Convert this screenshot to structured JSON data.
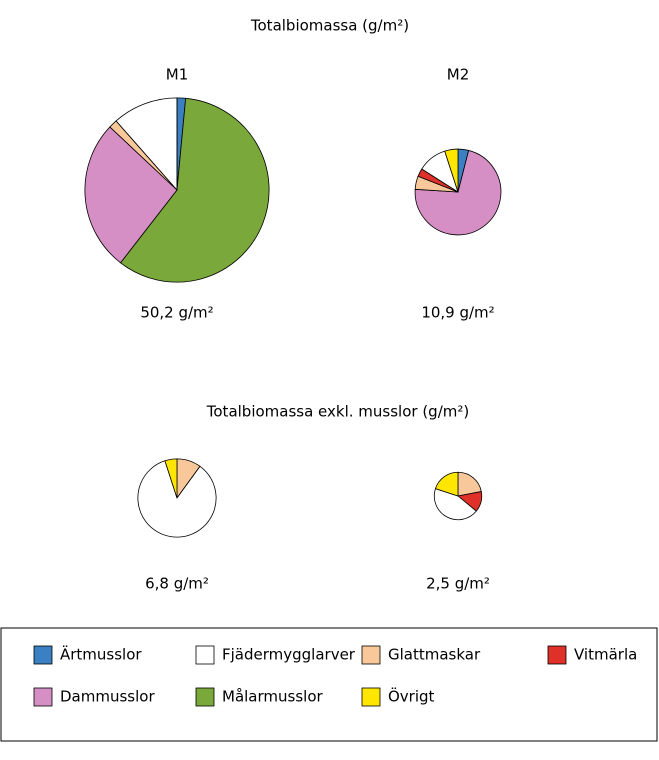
{
  "titles": [
    "Totalbiomassa (g/m²)",
    "Totalbiomassa exkl. musslor (g/m²)"
  ],
  "legend": [
    {
      "name": "Ärtmusslor",
      "color": "#3a80c3"
    },
    {
      "name": "Fjädermygglarver",
      "color": "#ffffff"
    },
    {
      "name": "Glattmaskar",
      "color": "#f9c89a"
    },
    {
      "name": "Vitmärla",
      "color": "#e0302a"
    },
    {
      "name": "Dammusslor",
      "color": "#d58fc4"
    },
    {
      "name": "Målarmusslor",
      "color": "#7aa83a"
    },
    {
      "name": "Övrigt",
      "color": "#ffe600"
    }
  ],
  "chart_data": [
    {
      "type": "pie",
      "name": "M1",
      "values": [
        1.5,
        11.5,
        1.5,
        0,
        26.5,
        59,
        0
      ],
      "total": 50.2,
      "total_label": "50,2 g/m²"
    },
    {
      "type": "pie",
      "name": "M2",
      "values": [
        4,
        11,
        5,
        3,
        72,
        0,
        5
      ],
      "total": 10.9,
      "total_label": "10,9 g/m²"
    },
    {
      "type": "pie",
      "values": [
        0,
        85,
        10,
        0,
        0,
        0,
        5
      ],
      "total": 6.8,
      "total_label": "6,8 g/m²"
    },
    {
      "type": "pie",
      "values": [
        0,
        44,
        22,
        14,
        0,
        0,
        20
      ],
      "total": 2.5,
      "total_label": "2,5 g/m²"
    }
  ]
}
